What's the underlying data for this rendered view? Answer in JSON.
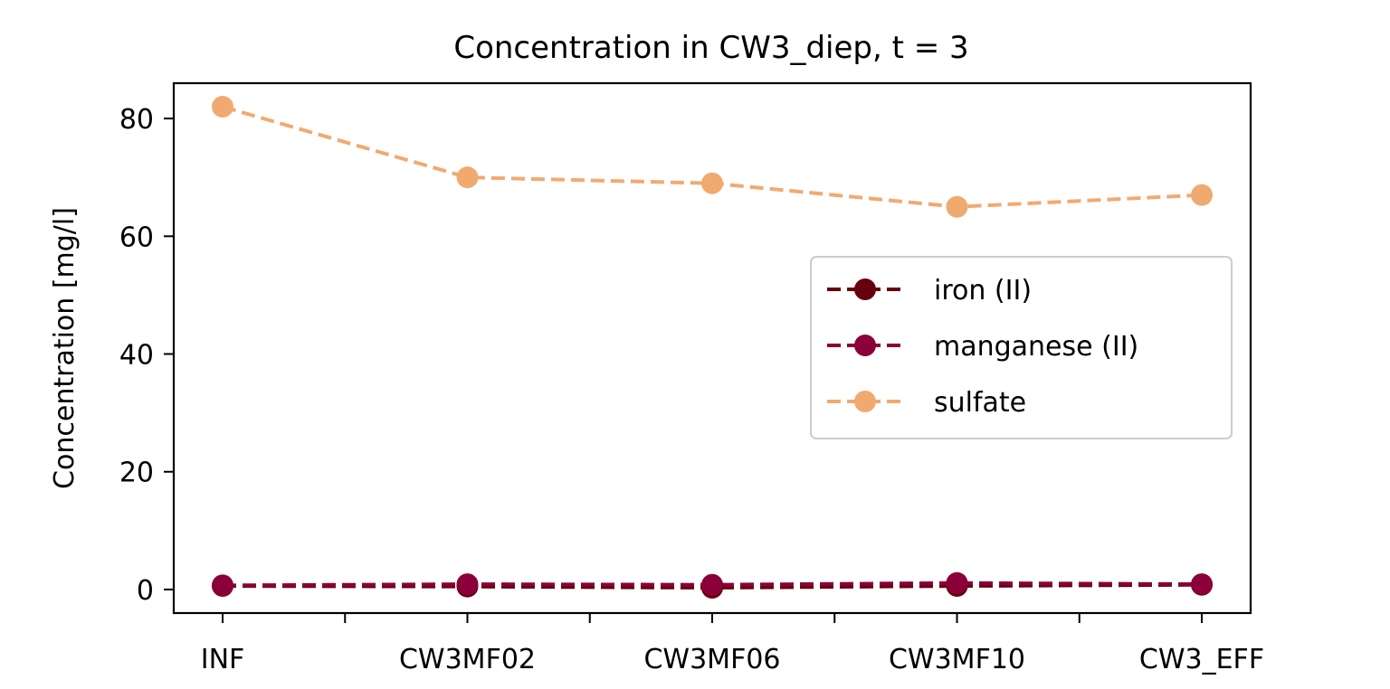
{
  "chart_data": {
    "type": "line",
    "title": "Concentration in CW3_diep, t = 3",
    "xlabel": "",
    "ylabel": "Concentration [mg/l]",
    "categories": [
      "INF",
      "CW3MF02",
      "CW3MF06",
      "CW3MF10",
      "CW3_EFF"
    ],
    "ylim": [
      -4,
      86
    ],
    "yticks": [
      0,
      20,
      40,
      60,
      80
    ],
    "grid": false,
    "legend_position": "center-right",
    "series": [
      {
        "name": "iron (II)",
        "color": "#67000d",
        "linestyle": "dashed",
        "marker": "circle",
        "values": [
          0.6,
          0.5,
          0.3,
          0.6,
          0.8
        ]
      },
      {
        "name": "manganese (II)",
        "color": "#8b003a",
        "linestyle": "dashed",
        "marker": "circle",
        "values": [
          0.7,
          0.9,
          0.8,
          1.1,
          0.9
        ]
      },
      {
        "name": "sulfate",
        "color": "#f0aa70",
        "linestyle": "dashed",
        "marker": "circle",
        "values": [
          82,
          70,
          69,
          65,
          67
        ]
      }
    ]
  }
}
